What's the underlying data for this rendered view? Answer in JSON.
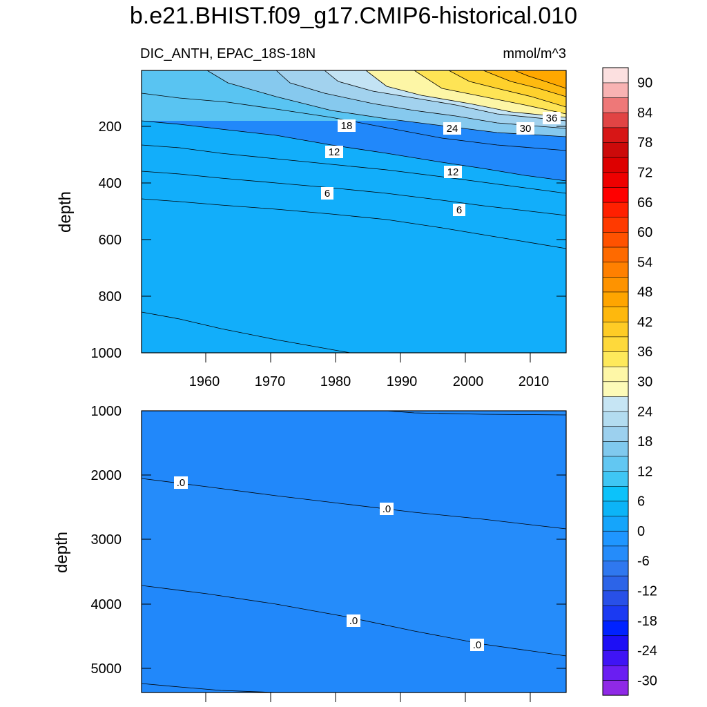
{
  "title": "b.e21.BHIST.f09_g17.CMIP6-historical.010",
  "chart_data": [
    {
      "type": "heatmap",
      "panel": "upper",
      "subtitle_left": "DIC_ANTH, EPAC_18S-18N",
      "subtitle_right": "mmol/m^3",
      "xlabel": "",
      "ylabel": "depth",
      "xlim": [
        1950,
        2015
      ],
      "ylim": [
        0,
        1000
      ],
      "y_inverted": true,
      "x_ticks": [
        "1960",
        "1970",
        "1980",
        "1990",
        "2000",
        "2010"
      ],
      "y_ticks": [
        "200",
        "400",
        "600",
        "800",
        "1000"
      ],
      "contour_labels": [
        "18",
        "24",
        "30",
        "36",
        "12",
        "12",
        "6",
        "6"
      ],
      "grid": false
    },
    {
      "type": "heatmap",
      "panel": "lower",
      "xlabel": "",
      "ylabel": "depth",
      "xlim": [
        1950,
        2015
      ],
      "ylim": [
        1000,
        5350
      ],
      "y_inverted": true,
      "y_ticks": [
        "1000",
        "2000",
        "3000",
        "4000",
        "5000"
      ],
      "contour_labels": [
        ".0",
        ".0",
        ".0",
        ".0"
      ],
      "grid": false
    }
  ],
  "colorbar": {
    "units": "mmol/m^3",
    "min": -33,
    "max": 93,
    "step": 3,
    "labels": [
      "90",
      "84",
      "78",
      "72",
      "66",
      "60",
      "54",
      "48",
      "42",
      "36",
      "30",
      "24",
      "18",
      "12",
      "6",
      "0",
      "-6",
      "-12",
      "-18",
      "-24",
      "-30"
    ],
    "colors_bottom_to_top": [
      "#8f29e6",
      "#6a1ef2",
      "#3f14f5",
      "#1d0ff5",
      "#0022ff",
      "#1b3af2",
      "#2850e8",
      "#2c64e8",
      "#2f78ef",
      "#258cfa",
      "#1f96ff",
      "#15a5fb",
      "#0cb4f7",
      "#0cc2fa",
      "#3fc6f4",
      "#62c7f2",
      "#80c9ee",
      "#9cd0ee",
      "#b3dcf0",
      "#c6e5f4",
      "#fdfbb8",
      "#fef7a7",
      "#fee95b",
      "#fed93b",
      "#fecc26",
      "#feb80d",
      "#ffa500",
      "#fe9300",
      "#ff8000",
      "#fe6a00",
      "#ff5200",
      "#ff3a00",
      "#ff2000",
      "#ff0000",
      "#ee0000",
      "#dd0000",
      "#cc0a0a",
      "#d71616",
      "#e14444",
      "#ee7878",
      "#f8b3b3",
      "#fce0e0"
    ]
  }
}
